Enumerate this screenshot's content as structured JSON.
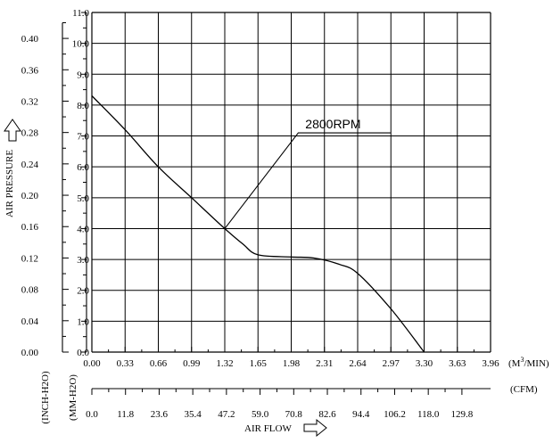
{
  "chart_data": {
    "type": "line",
    "x_unit_primary": "(M3/MIN)",
    "x_unit_secondary": "(CFM)",
    "y_unit_left_outer": "(INCH-H2O)",
    "y_unit_left_inner": "(MM-H2O)",
    "ylabel": "AIR PRESSURE",
    "xlabel": "AIR FLOW",
    "annotation": "2800RPM",
    "xlim": [
      0,
      3.96
    ],
    "ylim": [
      0,
      11.0
    ],
    "grid": true,
    "x_ticks_m3min": [
      "0.00",
      "0.33",
      "0.66",
      "0.99",
      "1.32",
      "1.65",
      "1.98",
      "2.31",
      "2.64",
      "2.97",
      "3.30",
      "3.63",
      "3.96"
    ],
    "x_ticks_cfm": [
      "0.0",
      "11.8",
      "23.6",
      "35.4",
      "47.2",
      "59.0",
      "70.8",
      "82.6",
      "94.4",
      "106.2",
      "118.0",
      "129.8"
    ],
    "y_ticks_mmh2o": [
      "0.0",
      "1.0",
      "2.0",
      "3.0",
      "4.0",
      "5.0",
      "6.0",
      "7.0",
      "8.0",
      "9.0",
      "10.0",
      "11.0"
    ],
    "y_ticks_inh2o": [
      "0.00",
      "0.04",
      "0.08",
      "0.12",
      "0.16",
      "0.20",
      "0.24",
      "0.28",
      "0.32",
      "0.36",
      "0.40"
    ],
    "series": [
      {
        "name": "2800RPM",
        "x": [
          0.0,
          0.33,
          0.66,
          0.99,
          1.32,
          1.5,
          1.65,
          1.98,
          2.2,
          2.45,
          2.64,
          2.97,
          3.3
        ],
        "y": [
          8.3,
          7.2,
          6.0,
          5.0,
          4.0,
          3.5,
          3.15,
          3.08,
          3.05,
          2.85,
          2.55,
          1.4,
          0.0
        ]
      }
    ]
  }
}
